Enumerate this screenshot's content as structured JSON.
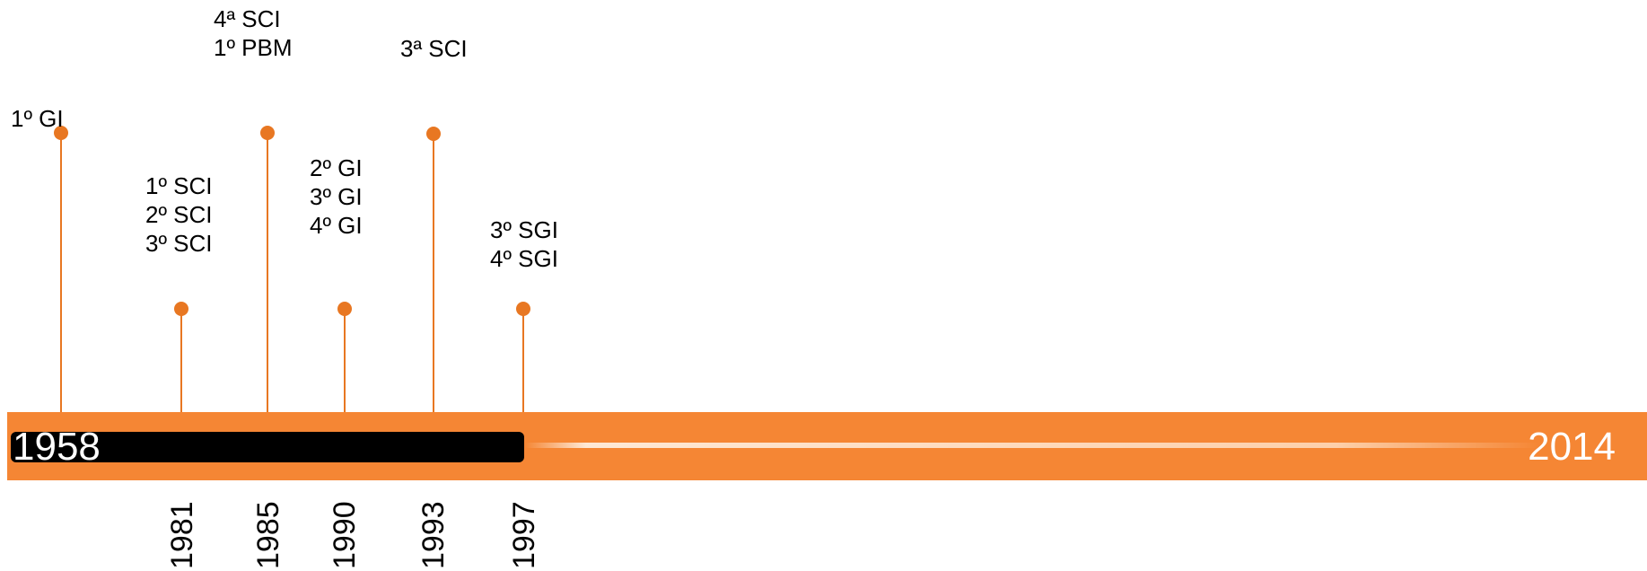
{
  "timeline": {
    "start_year": "1958",
    "end_year": "2014",
    "colors": {
      "bar": "#f58634",
      "progress": "#000000",
      "stem": "#e87722"
    },
    "year_ticks": [
      "1981",
      "1985",
      "1990",
      "1993",
      "1997"
    ],
    "events": [
      {
        "year": "1958",
        "lines": [
          "1º GI"
        ]
      },
      {
        "year": "1981",
        "lines": [
          "1º SCI",
          "2º SCI",
          "3º SCI"
        ]
      },
      {
        "year": "1985",
        "lines": [
          "4ª SCI",
          "1º PBM"
        ]
      },
      {
        "year": "1990",
        "lines": [
          "2º GI",
          "3º GI",
          "4º GI"
        ]
      },
      {
        "year": "1993",
        "lines": [
          "3ª SCI"
        ]
      },
      {
        "year": "1997",
        "lines": [
          "3º SGI",
          "4º SGI"
        ]
      }
    ]
  }
}
